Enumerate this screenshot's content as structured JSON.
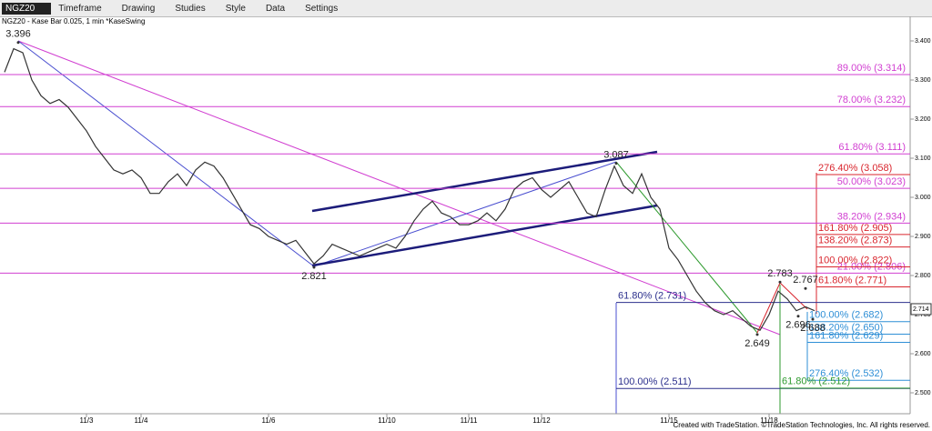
{
  "toolbar": {
    "symbol": "NGZ20",
    "items": [
      "Timeframe",
      "Drawing",
      "Studies",
      "Style",
      "Data",
      "Settings"
    ]
  },
  "chart_data": {
    "type": "line",
    "subtitle": "NGZ20 - Kase Bar 0.025, 1 min  *KaseSwing",
    "footer": "Created with TradeStation. ©TradeStation Technologies, Inc. All rights reserved.",
    "categories": [
      null,
      null,
      null,
      null,
      null,
      null,
      null,
      null,
      null,
      "11/3",
      null,
      null,
      null,
      null,
      null,
      "11/4",
      null,
      null,
      null,
      null,
      null,
      null,
      null,
      null,
      null,
      null,
      null,
      null,
      null,
      "11/6",
      null,
      null,
      null,
      null,
      null,
      null,
      null,
      null,
      null,
      null,
      null,
      null,
      "11/10",
      null,
      null,
      null,
      null,
      null,
      null,
      null,
      null,
      "11/11",
      null,
      null,
      null,
      null,
      null,
      null,
      null,
      "11/12",
      null,
      null,
      null,
      null,
      null,
      null,
      null,
      null,
      null,
      null,
      null,
      null,
      null,
      "11/15",
      null,
      null,
      null,
      null,
      null,
      null,
      null,
      null,
      null,
      null,
      "11/18",
      null,
      null,
      null,
      null,
      null,
      null,
      null,
      null,
      null,
      null,
      null,
      null,
      null,
      null,
      null
    ],
    "series": [
      {
        "name": "NGZ20",
        "color": "#333333",
        "values": [
          3.32,
          3.38,
          3.37,
          3.3,
          3.26,
          3.24,
          3.25,
          3.23,
          3.2,
          3.17,
          3.13,
          3.1,
          3.07,
          3.06,
          3.07,
          3.05,
          3.01,
          3.01,
          3.04,
          3.06,
          3.03,
          3.07,
          3.09,
          3.08,
          3.05,
          3.01,
          2.97,
          2.93,
          2.92,
          2.9,
          2.89,
          2.88,
          2.89,
          2.86,
          2.83,
          2.85,
          2.88,
          2.87,
          2.86,
          2.85,
          2.86,
          2.87,
          2.88,
          2.87,
          2.9,
          2.94,
          2.97,
          2.99,
          2.96,
          2.95,
          2.93,
          2.93,
          2.94,
          2.96,
          2.94,
          2.97,
          3.02,
          3.04,
          3.05,
          3.02,
          3.0,
          3.02,
          3.04,
          3.0,
          2.96,
          2.95,
          3.02,
          3.08,
          3.03,
          3.01,
          3.06,
          3.0,
          2.97,
          2.87,
          2.84,
          2.8,
          2.76,
          2.73,
          2.71,
          2.7,
          2.71,
          2.69,
          2.67,
          2.66,
          2.7,
          2.76,
          2.74,
          2.71,
          2.72,
          2.71,
          null,
          null,
          null,
          null,
          null,
          null,
          null,
          null,
          null,
          null
        ]
      }
    ],
    "ylim": [
      2.4465,
      3.4628
    ],
    "yticks": [
      {
        "value": 3.4,
        "label": "3.400"
      },
      {
        "value": 3.3,
        "label": "3.300"
      },
      {
        "value": 3.2,
        "label": "3.200"
      },
      {
        "value": 3.1,
        "label": "3.100"
      },
      {
        "value": 3.0,
        "label": "3.000"
      },
      {
        "value": 2.9,
        "label": "2.900"
      },
      {
        "value": 2.8,
        "label": "2.800"
      },
      {
        "value": 2.7,
        "label": "2.700"
      },
      {
        "value": 2.6,
        "label": "2.600"
      },
      {
        "value": 2.5,
        "label": "2.500"
      }
    ],
    "last_price": 2.714,
    "swings": [
      {
        "x": 1.5,
        "value": 3.396
      },
      {
        "x": 34,
        "value": 2.821
      },
      {
        "x": 67.2,
        "value": 3.087
      },
      {
        "x": 82.7,
        "value": 2.649
      },
      {
        "x": 85.2,
        "value": 2.783
      },
      {
        "x": 88,
        "value": 2.767
      },
      {
        "x": 87.2,
        "value": 2.696
      },
      {
        "x": 88.8,
        "value": 2.688
      }
    ],
    "fib_sets": [
      {
        "color": "#d13fd1",
        "levels": [
          {
            "value": 3.314,
            "label": "89.00% (3.314)"
          },
          {
            "value": 3.232,
            "label": "78.00% (3.232)"
          },
          {
            "value": 3.111,
            "label": "61.80% (3.111)"
          },
          {
            "value": 3.023,
            "label": "50.00% (3.023)"
          },
          {
            "value": 2.934,
            "label": "38.20% (2.934)"
          },
          {
            "value": 2.806,
            "label": "21.00% (2.806)"
          }
        ]
      },
      {
        "color": "#d9262e",
        "start": 89.2,
        "levels": [
          {
            "value": 3.058,
            "label": "276.40% (3.058)"
          },
          {
            "value": 2.905,
            "label": "161.80% (2.905)"
          },
          {
            "value": 2.873,
            "label": "138.20% (2.873)"
          },
          {
            "value": 2.822,
            "label": "100.00% (2.822)"
          },
          {
            "value": 2.771,
            "label": "61.80% (2.771)"
          }
        ]
      },
      {
        "color": "#2b2f8c",
        "start": 67.2,
        "levels": [
          {
            "value": 2.731,
            "label": "61.80% (2.731)"
          },
          {
            "value": 2.511,
            "label": "100.00% (2.511)"
          }
        ]
      },
      {
        "color": "#2f8fd6",
        "start": 88.2,
        "levels": [
          {
            "value": 2.682,
            "label": "100.00% (2.682)"
          },
          {
            "value": 2.65,
            "label": "138.20% (2.650)"
          },
          {
            "value": 2.629,
            "label": "161.80% (2.629)"
          },
          {
            "value": 2.532,
            "label": "276.40% (2.532)"
          }
        ]
      },
      {
        "color": "#2e9a2e",
        "start": 85.2,
        "levels": [
          {
            "value": 2.512,
            "label": "61.80% (2.512)"
          }
        ]
      }
    ]
  }
}
